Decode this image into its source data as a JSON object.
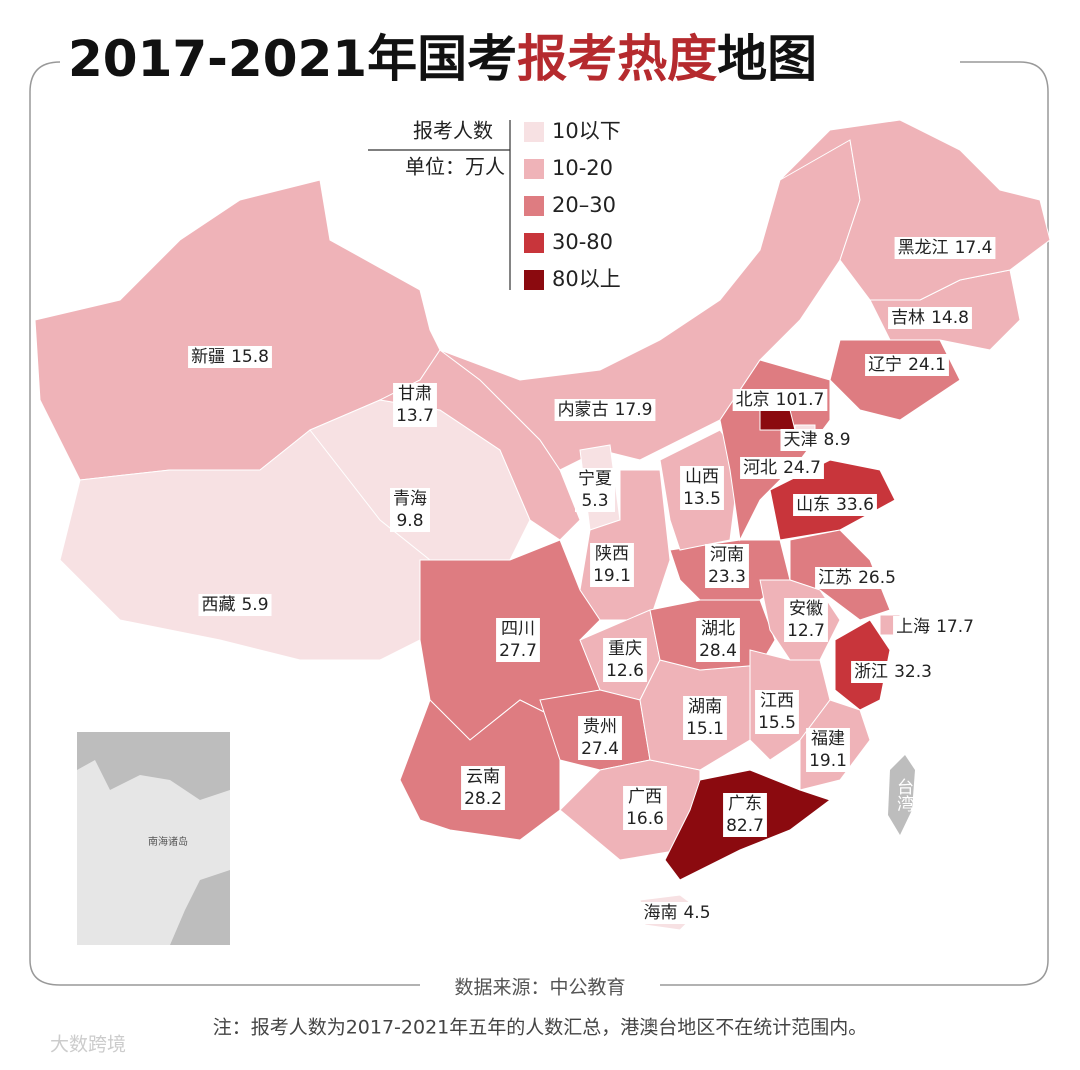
{
  "title": {
    "parts": [
      "2017-2021年国考",
      "报考热度",
      "地图"
    ]
  },
  "legend": {
    "title": "报考人数",
    "unit": "单位：万人",
    "bins": [
      {
        "label": "10以下",
        "color": "#f7e1e3"
      },
      {
        "label": "10-20",
        "color": "#efb3b8"
      },
      {
        "label": "20–30",
        "color": "#de7c81"
      },
      {
        "label": "30-80",
        "color": "#c8353b"
      },
      {
        "label": "80以上",
        "color": "#8b0a0f"
      }
    ]
  },
  "provinces": [
    {
      "name": "新疆",
      "value": 15.8,
      "color": "#efb3b8"
    },
    {
      "name": "西藏",
      "value": 5.9,
      "color": "#f7e1e3"
    },
    {
      "name": "青海",
      "value": 9.8,
      "color": "#f7e1e3"
    },
    {
      "name": "甘肃",
      "value": 13.7,
      "color": "#efb3b8"
    },
    {
      "name": "内蒙古",
      "value": 17.9,
      "color": "#efb3b8"
    },
    {
      "name": "宁夏",
      "value": 5.3,
      "color": "#f7e1e3"
    },
    {
      "name": "陕西",
      "value": 19.1,
      "color": "#efb3b8"
    },
    {
      "name": "四川",
      "value": 27.7,
      "color": "#de7c81"
    },
    {
      "name": "重庆",
      "value": 12.6,
      "color": "#efb3b8"
    },
    {
      "name": "云南",
      "value": 28.2,
      "color": "#de7c81"
    },
    {
      "name": "贵州",
      "value": 27.4,
      "color": "#de7c81"
    },
    {
      "name": "广西",
      "value": 16.6,
      "color": "#efb3b8"
    },
    {
      "name": "广东",
      "value": 82.7,
      "color": "#8b0a0f"
    },
    {
      "name": "海南",
      "value": 4.5,
      "color": "#f7e1e3"
    },
    {
      "name": "湖南",
      "value": 15.1,
      "color": "#efb3b8"
    },
    {
      "name": "湖北",
      "value": 28.4,
      "color": "#de7c81"
    },
    {
      "name": "河南",
      "value": 23.3,
      "color": "#de7c81"
    },
    {
      "name": "山西",
      "value": 13.5,
      "color": "#efb3b8"
    },
    {
      "name": "河北",
      "value": 24.7,
      "color": "#de7c81"
    },
    {
      "name": "北京",
      "value": 101.7,
      "color": "#8b0a0f"
    },
    {
      "name": "天津",
      "value": 8.9,
      "color": "#f7e1e3"
    },
    {
      "name": "山东",
      "value": 33.6,
      "color": "#c8353b"
    },
    {
      "name": "江苏",
      "value": 26.5,
      "color": "#de7c81"
    },
    {
      "name": "安徽",
      "value": 12.7,
      "color": "#efb3b8"
    },
    {
      "name": "上海",
      "value": 17.7,
      "color": "#efb3b8"
    },
    {
      "name": "浙江",
      "value": 32.3,
      "color": "#c8353b"
    },
    {
      "name": "江西",
      "value": 15.5,
      "color": "#efb3b8"
    },
    {
      "name": "福建",
      "value": 19.1,
      "color": "#efb3b8"
    },
    {
      "name": "辽宁",
      "value": 24.1,
      "color": "#de7c81"
    },
    {
      "name": "吉林",
      "value": 14.8,
      "color": "#efb3b8"
    },
    {
      "name": "黑龙江",
      "value": 17.4,
      "color": "#efb3b8"
    }
  ],
  "inset_label": "南海诸岛",
  "taiwan": "台湾",
  "source": "数据来源：中公教育",
  "note": "注：报考人数为2017-2021年五年的人数汇总，港澳台地区不在统计范围内。",
  "watermark": "大数跨境"
}
